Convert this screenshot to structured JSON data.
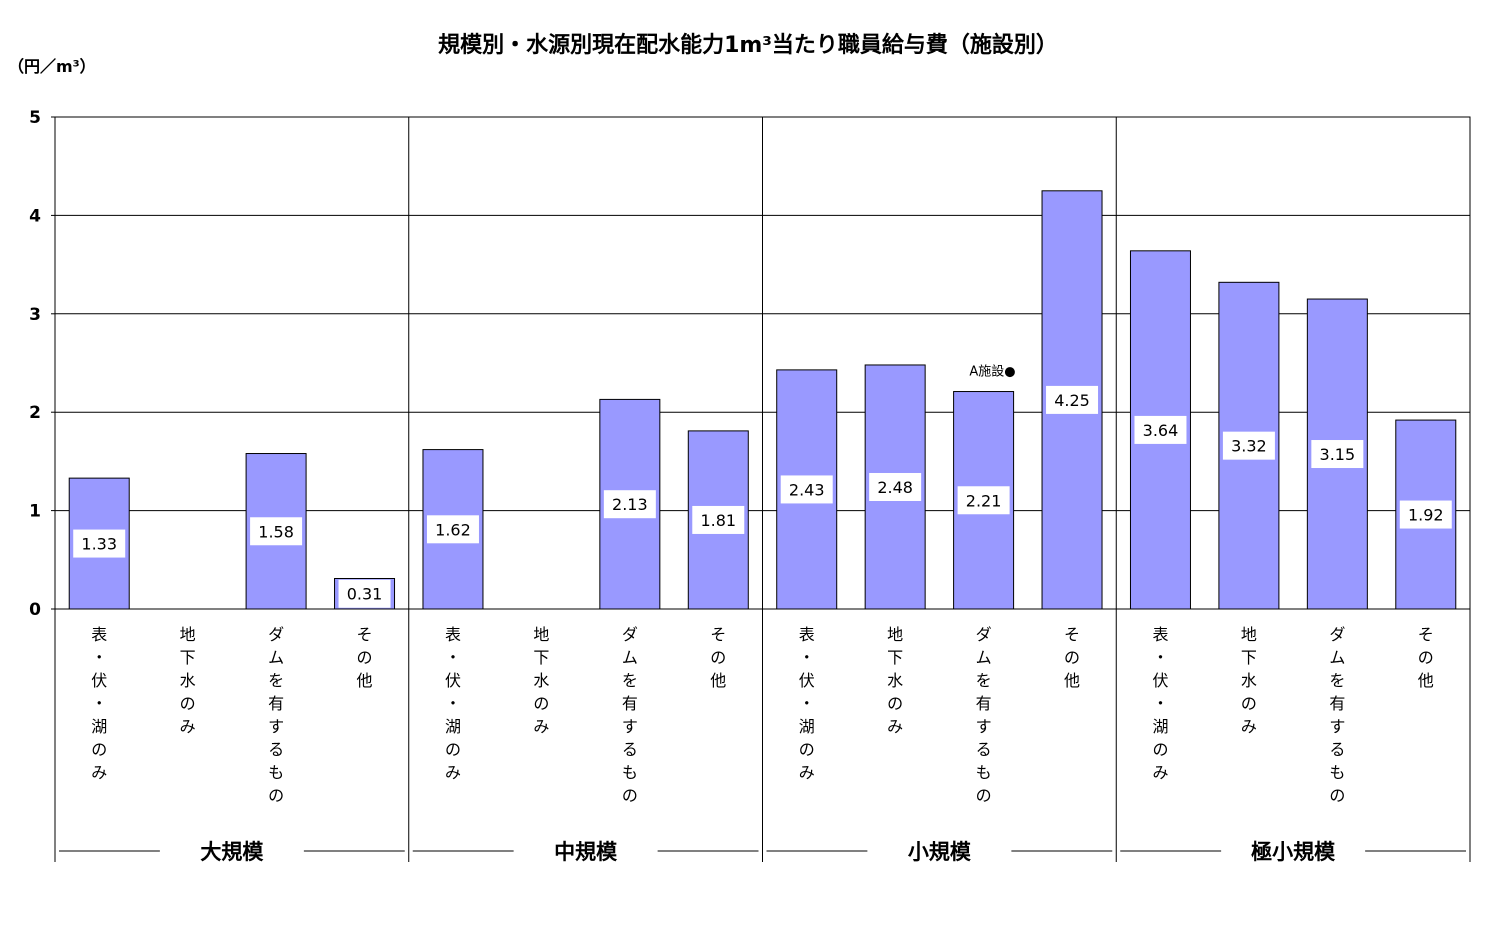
{
  "chart_data": {
    "type": "bar",
    "title": "規模別・水源別現在配水能力1m³当たり職員給与費（施設別）",
    "ylabel": "（円／m³）",
    "ylim": [
      0,
      5
    ],
    "yticks": [
      "0",
      "1",
      "2",
      "3",
      "4",
      "5"
    ],
    "grid": true,
    "bar_color": "#9999ff",
    "groups": [
      {
        "name": "大規模",
        "categories": [
          "表・伏・湖のみ",
          "地下水のみ",
          "ダムを有するもの",
          "その他"
        ],
        "values": [
          1.33,
          null,
          1.58,
          0.31
        ],
        "labels": [
          "1.33",
          "",
          "1.58",
          "0.31"
        ]
      },
      {
        "name": "中規模",
        "categories": [
          "表・伏・湖のみ",
          "地下水のみ",
          "ダムを有するもの",
          "その他"
        ],
        "values": [
          1.62,
          null,
          2.13,
          1.81
        ],
        "labels": [
          "1.62",
          "",
          "2.13",
          "1.81"
        ]
      },
      {
        "name": "小規模",
        "categories": [
          "表・伏・湖のみ",
          "地下水のみ",
          "ダムを有するもの",
          "その他"
        ],
        "values": [
          2.43,
          2.48,
          2.21,
          4.25
        ],
        "labels": [
          "2.43",
          "2.48",
          "2.21",
          "4.25"
        ]
      },
      {
        "name": "極小規模",
        "categories": [
          "表・伏・湖のみ",
          "地下水のみ",
          "ダムを有するもの",
          "その他"
        ],
        "values": [
          3.64,
          3.32,
          3.15,
          1.92
        ],
        "labels": [
          "3.64",
          "3.32",
          "3.15",
          "1.92"
        ]
      }
    ],
    "annotation": {
      "text": "A施設●",
      "group": 2,
      "category": 2,
      "value": 2.21
    }
  }
}
